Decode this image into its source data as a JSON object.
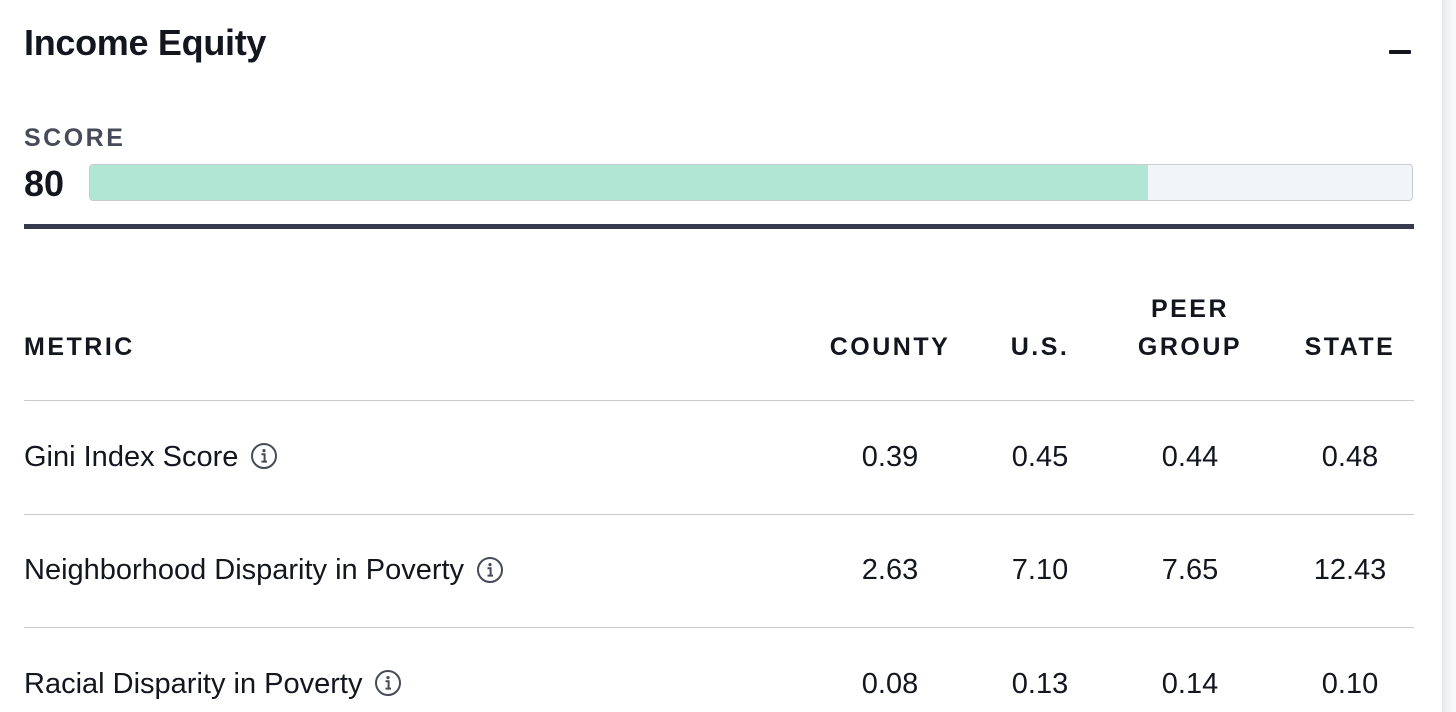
{
  "section": {
    "title": "Income Equity",
    "collapse_icon": "minus-icon"
  },
  "score": {
    "label": "SCORE",
    "value": "80",
    "progress_percent": 80,
    "fill_color": "#b2e6d4",
    "track_color": "#f2f5f8"
  },
  "table": {
    "headers": {
      "metric": "METRIC",
      "county": "COUNTY",
      "us": "U.S.",
      "peer_group_line1": "PEER",
      "peer_group_line2": "GROUP",
      "state": "STATE"
    },
    "info_icon": "info-circle-icon",
    "rows": [
      {
        "metric": "Gini Index Score",
        "county": "0.39",
        "us": "0.45",
        "peer_group": "0.44",
        "state": "0.48"
      },
      {
        "metric": "Neighborhood Disparity in Poverty",
        "county": "2.63",
        "us": "7.10",
        "peer_group": "7.65",
        "state": "12.43"
      },
      {
        "metric": "Racial Disparity in Poverty",
        "county": "0.08",
        "us": "0.13",
        "peer_group": "0.14",
        "state": "0.10"
      }
    ]
  }
}
